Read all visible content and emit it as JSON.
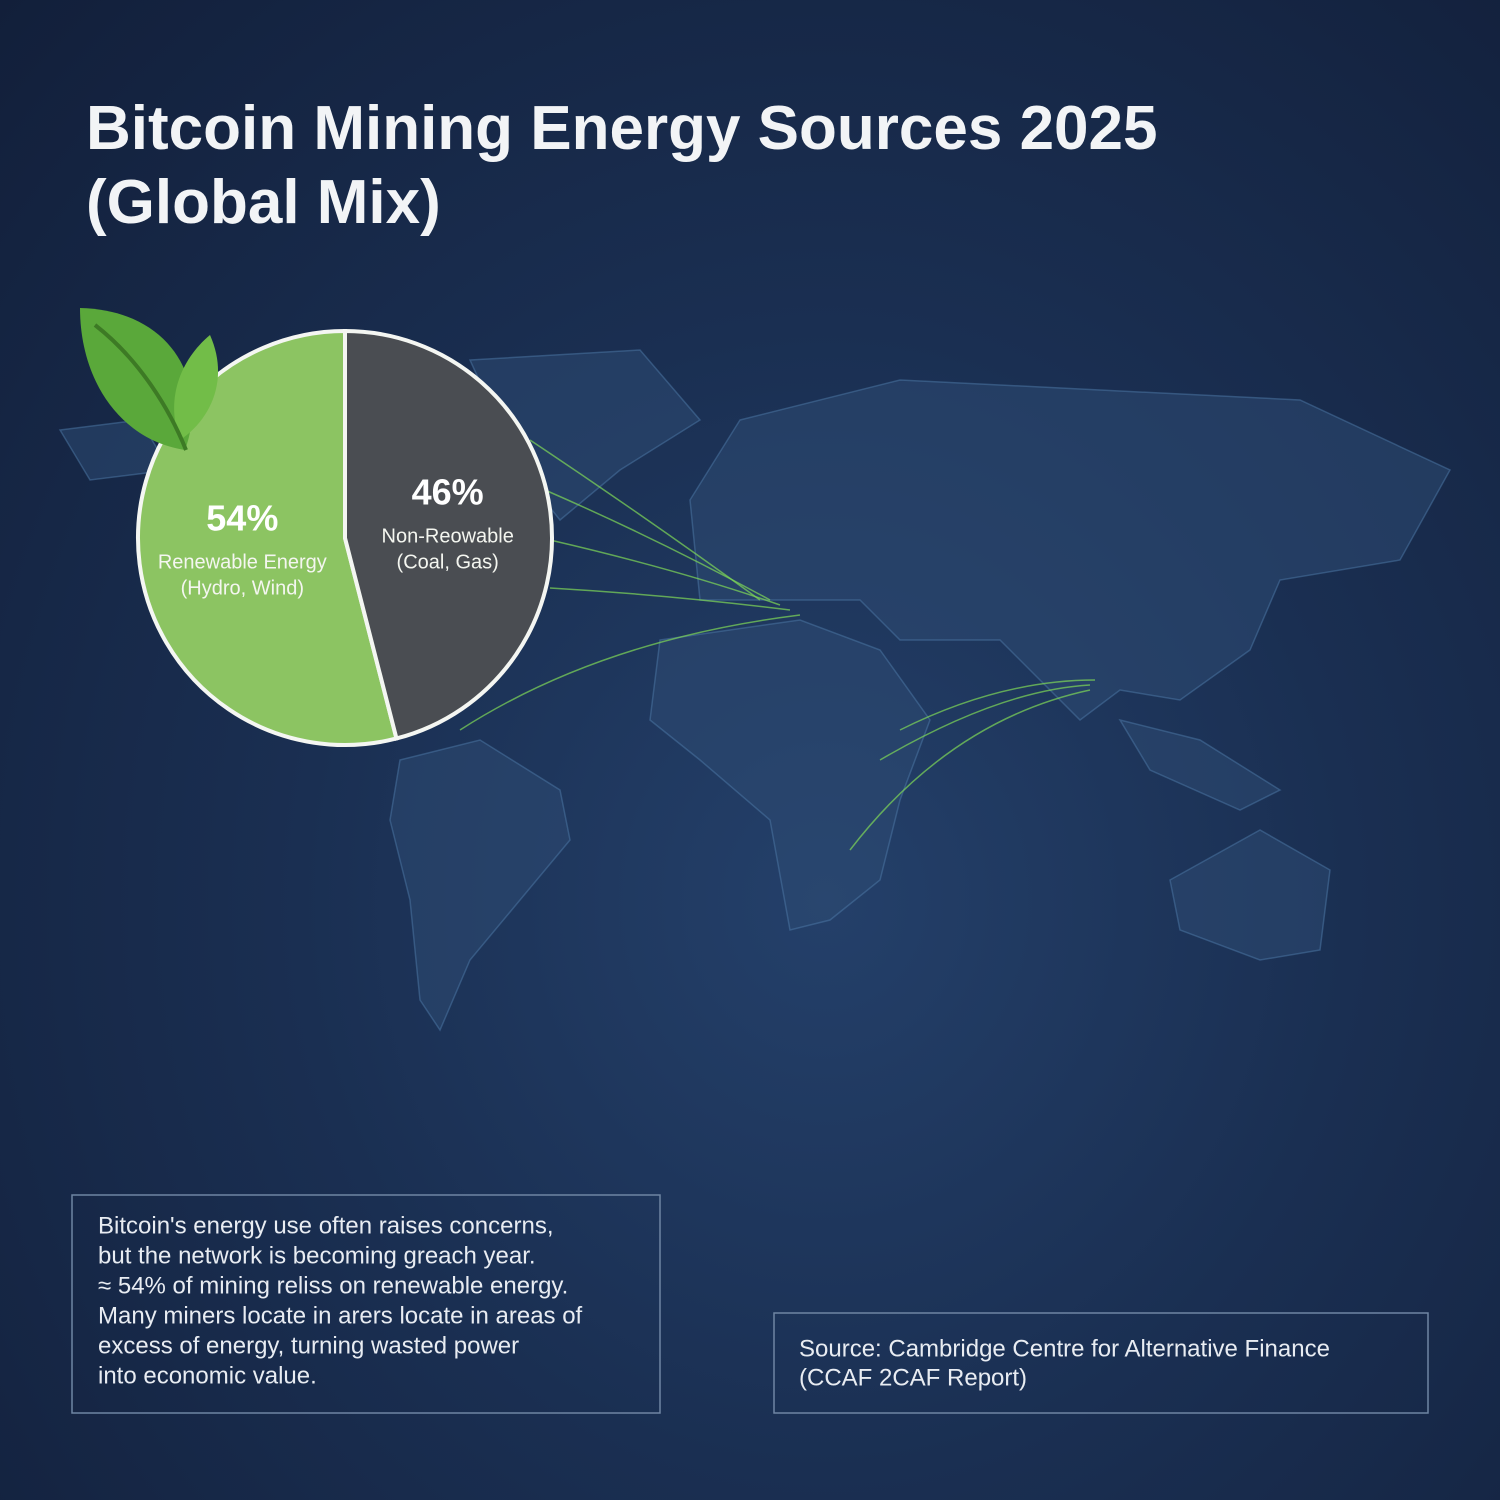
{
  "chart_data": {
    "type": "pie",
    "title": "Bitcoin Mining Energy Sources 2025 (Global Mix)",
    "categories": [
      "Renewable Energy",
      "Non-Reowable"
    ],
    "details": [
      "(Hydro, Wind)",
      "(Coal, Gas)"
    ],
    "values": [
      54,
      46
    ],
    "value_labels": [
      "54%",
      "46%"
    ],
    "colors": [
      "#8cc462",
      "#4a4d52"
    ]
  },
  "note": {
    "lines": [
      "Bitcoin's energy use often raises concerns,",
      "but the network is becoming greach year.",
      "≈ 54% of mining reliss on renewable energy.",
      "Many miners locate in arers locate in areas of",
      "excess of energy, turning wasted power",
      "into economic value."
    ]
  },
  "source": {
    "lines": [
      "Source: Cambridge Centre for Alternative Finance",
      "(CCAF 2CAF Report)"
    ]
  }
}
